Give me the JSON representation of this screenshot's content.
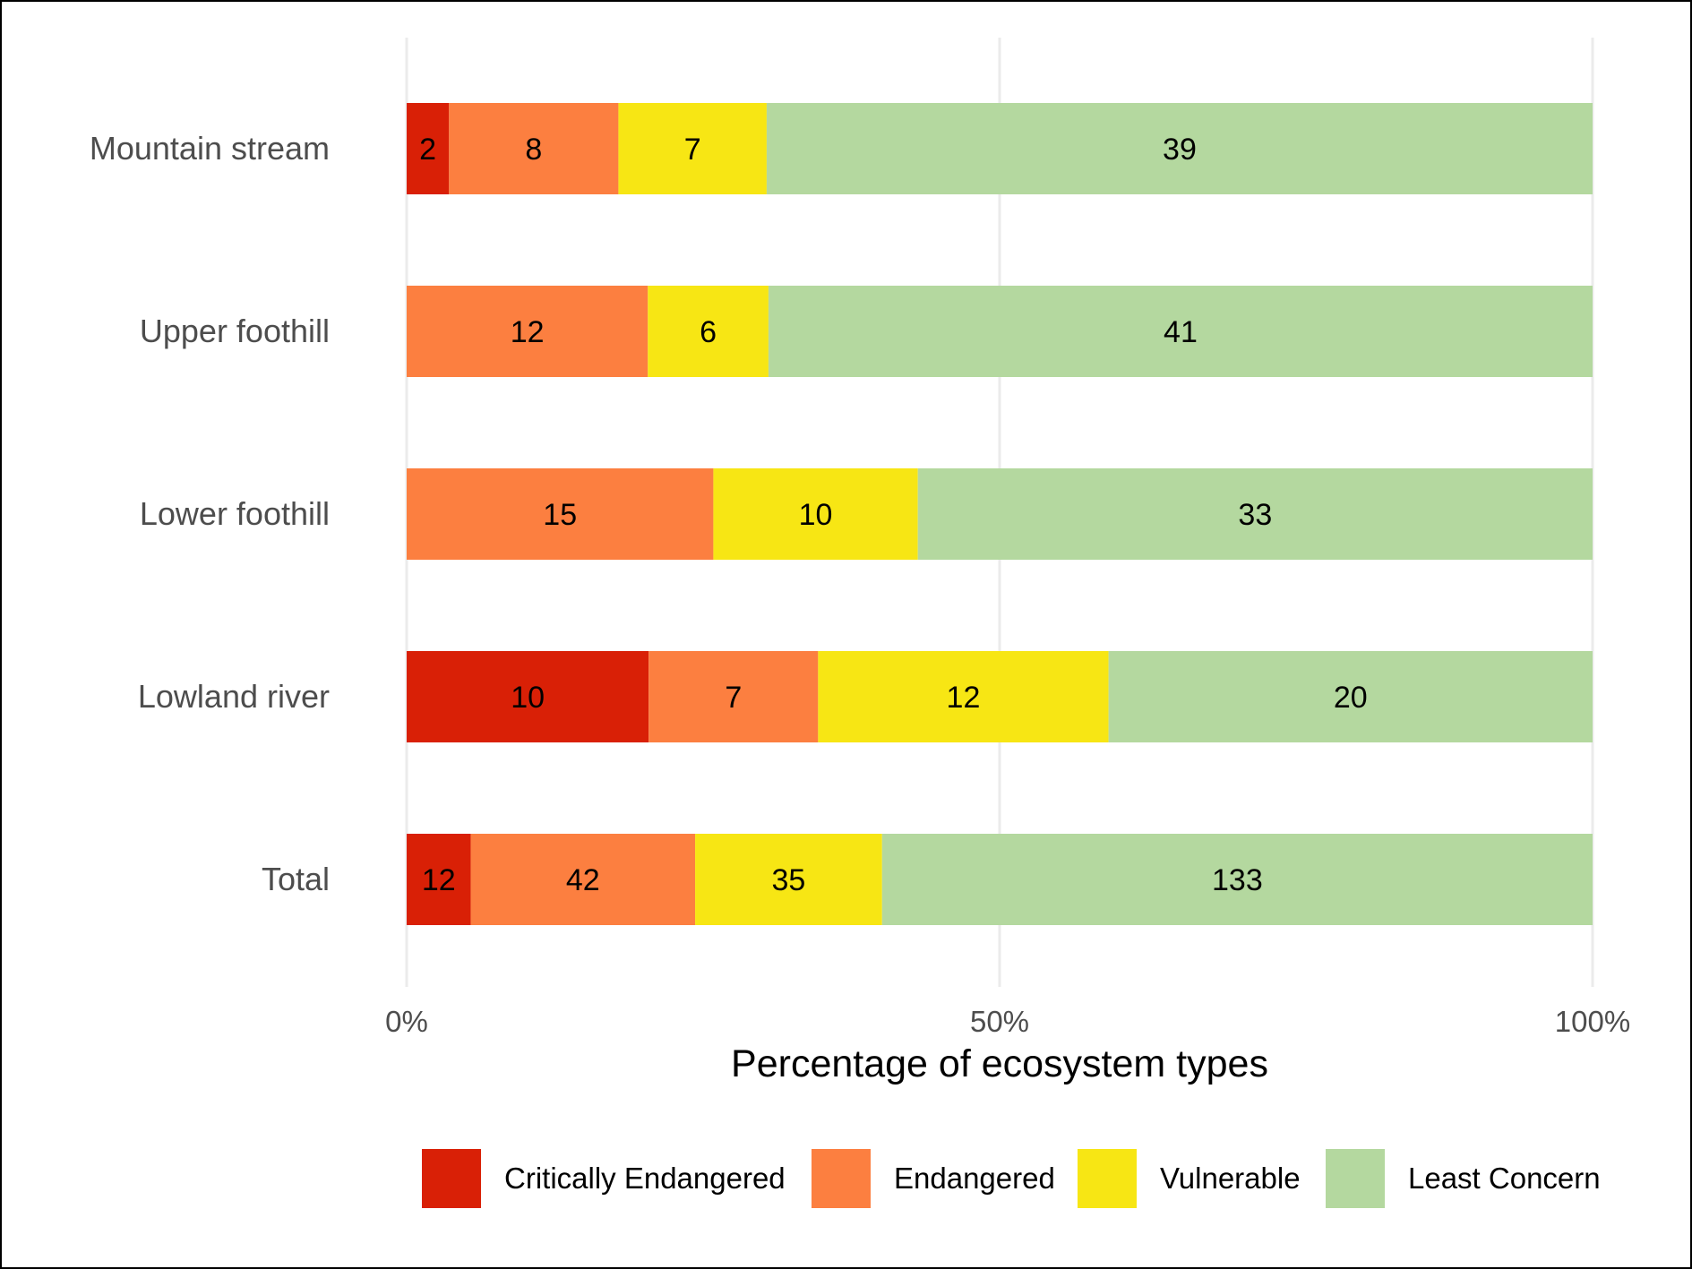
{
  "chart_data": {
    "type": "bar",
    "orientation": "horizontal",
    "stacked": "percent",
    "categories": [
      "Mountain stream",
      "Upper foothill",
      "Lower foothill",
      "Lowland river",
      "Total"
    ],
    "series": [
      {
        "name": "Critically Endangered",
        "color": "#d92006",
        "values": [
          2,
          0,
          0,
          10,
          12
        ]
      },
      {
        "name": "Endangered",
        "color": "#fc7f40",
        "values": [
          8,
          12,
          15,
          7,
          42
        ]
      },
      {
        "name": "Vulnerable",
        "color": "#f7e614",
        "values": [
          7,
          6,
          10,
          12,
          35
        ]
      },
      {
        "name": "Least Concern",
        "color": "#b4d89f",
        "values": [
          39,
          41,
          33,
          20,
          133
        ]
      }
    ],
    "xlabel": "Percentage of ecosystem types",
    "ylabel": "",
    "xlim": [
      0,
      100
    ],
    "x_ticks": [
      "0%",
      "50%",
      "100%"
    ],
    "grid": "vertical-major",
    "legend_position": "bottom"
  }
}
